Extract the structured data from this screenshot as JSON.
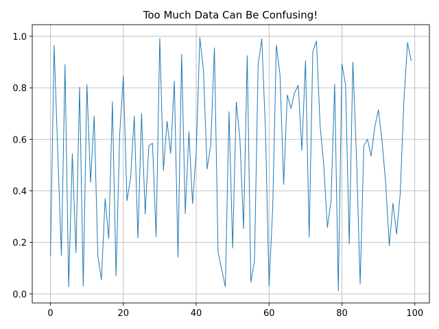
{
  "chart_data": {
    "type": "line",
    "title": "Too Much Data Can Be Confusing!",
    "xlabel": "",
    "ylabel": "",
    "xlim": [
      -5,
      104
    ],
    "ylim": [
      -0.035,
      1.045
    ],
    "xticks": [
      0,
      20,
      40,
      60,
      80,
      100
    ],
    "yticks": [
      0.0,
      0.2,
      0.4,
      0.6,
      0.8,
      1.0
    ],
    "xtick_labels": [
      "0",
      "20",
      "40",
      "60",
      "80",
      "100"
    ],
    "ytick_labels": [
      "0.0",
      "0.2",
      "0.4",
      "0.6",
      "0.8",
      "1.0"
    ],
    "grid": true,
    "series": [
      {
        "color": "#1f77b4",
        "x": [
          0,
          1,
          2,
          3,
          4,
          5,
          6,
          7,
          8,
          9,
          10,
          11,
          12,
          13,
          14,
          15,
          16,
          17,
          18,
          19,
          20,
          21,
          22,
          23,
          24,
          25,
          26,
          27,
          28,
          29,
          30,
          31,
          32,
          33,
          34,
          35,
          36,
          37,
          38,
          39,
          40,
          41,
          42,
          43,
          44,
          45,
          46,
          47,
          48,
          49,
          50,
          51,
          52,
          53,
          54,
          55,
          56,
          57,
          58,
          59,
          60,
          61,
          62,
          63,
          64,
          65,
          66,
          67,
          68,
          69,
          70,
          71,
          72,
          73,
          74,
          75,
          76,
          77,
          78,
          79,
          80,
          81,
          82,
          83,
          84,
          85,
          86,
          87,
          88,
          89,
          90,
          91,
          92,
          93,
          94,
          95,
          96,
          97,
          98,
          99
        ],
        "values": [
          0.146,
          0.965,
          0.55,
          0.15,
          0.89,
          0.028,
          0.544,
          0.16,
          0.802,
          0.03,
          0.813,
          0.433,
          0.69,
          0.15,
          0.055,
          0.37,
          0.215,
          0.745,
          0.07,
          0.62,
          0.845,
          0.362,
          0.45,
          0.69,
          0.217,
          0.7,
          0.31,
          0.575,
          0.585,
          0.222,
          0.992,
          0.48,
          0.67,
          0.545,
          0.825,
          0.143,
          0.93,
          0.312,
          0.63,
          0.35,
          0.55,
          0.995,
          0.865,
          0.485,
          0.58,
          0.955,
          0.162,
          0.095,
          0.028,
          0.707,
          0.178,
          0.745,
          0.6,
          0.254,
          0.925,
          0.045,
          0.13,
          0.89,
          0.99,
          0.638,
          0.03,
          0.336,
          0.965,
          0.85,
          0.425,
          0.772,
          0.72,
          0.78,
          0.81,
          0.557,
          0.905,
          0.22,
          0.94,
          0.982,
          0.655,
          0.5,
          0.258,
          0.36,
          0.815,
          0.012,
          0.893,
          0.81,
          0.193,
          0.9,
          0.525,
          0.04,
          0.575,
          0.6,
          0.535,
          0.647,
          0.715,
          0.595,
          0.43,
          0.188,
          0.352,
          0.233,
          0.39,
          0.75,
          0.975,
          0.905
        ]
      }
    ]
  }
}
